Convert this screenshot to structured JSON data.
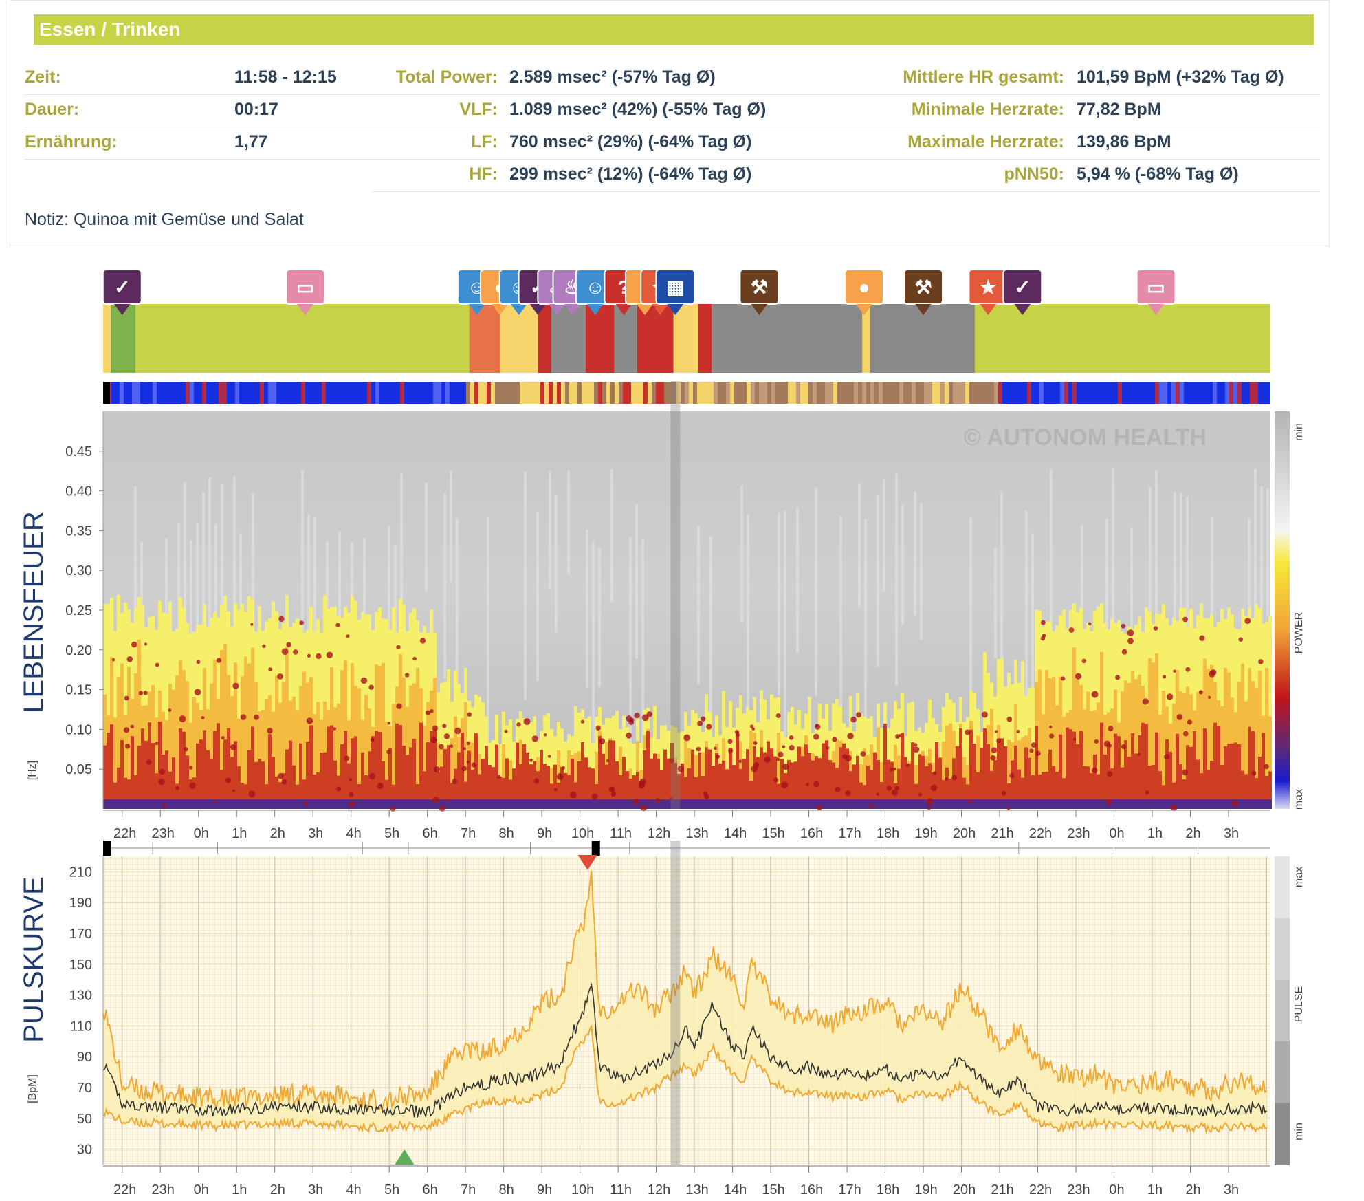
{
  "card": {
    "title": "Essen / Trinken",
    "left_rows": [
      {
        "label": "Zeit:",
        "value": "11:58 - 12:15"
      },
      {
        "label": "Dauer:",
        "value": "00:17"
      },
      {
        "label": "Ernährung:",
        "value": "1,77"
      }
    ],
    "mid_rows": [
      {
        "label": "Total Power:",
        "value": "2.589 msec² (-57% Tag Ø)"
      },
      {
        "label": "VLF:",
        "value": "1.089 msec² (42%) (-55% Tag Ø)"
      },
      {
        "label": "LF:",
        "value": "760 msec² (29%) (-64% Tag Ø)"
      },
      {
        "label": "HF:",
        "value": "299 msec² (12%) (-64% Tag Ø)"
      }
    ],
    "right_rows": [
      {
        "label": "Mittlere HR gesamt:",
        "value": "101,59 BpM (+32% Tag Ø)"
      },
      {
        "label": "Minimale Herzrate:",
        "value": "77,82 BpM"
      },
      {
        "label": "Maximale Herzrate:",
        "value": "139,86 BpM"
      },
      {
        "label": "pNN50:",
        "value": "5,94 % (-68% Tag Ø)"
      }
    ],
    "note": "Notiz: Quinoa mit Gemüse und Salat"
  },
  "colors": {
    "header_bg": "#c6d347",
    "label": "#a9a63a",
    "value": "#2d4257",
    "sleep": "#c6d347",
    "sleep_marker": "#5c2a5e",
    "bed_marker": "#e58aab",
    "food": "#f5a24b",
    "stress": "#c9302c",
    "mental": "#3d8fd1",
    "work": "#8a8a8a",
    "sport": "#6b3e1f",
    "pulse_line": "#333333",
    "pulse_band": "#f0a830",
    "spectro_hot": "#c0141a",
    "spectro_warm": "#f6d72b"
  },
  "watermark": "© AUTONOM HEALTH",
  "chart_data": [
    {
      "type": "heatmap",
      "title": "LEBENSFEUER",
      "ylabel": "[Hz]",
      "ylim": [
        0,
        0.5
      ],
      "y_ticks": [
        "0.45",
        "0.40",
        "0.35",
        "0.30",
        "0.25",
        "0.20",
        "0.15",
        "0.10",
        "0.05"
      ],
      "x_ticks": [
        "22h",
        "23h",
        "0h",
        "1h",
        "2h",
        "3h",
        "4h",
        "5h",
        "6h",
        "7h",
        "8h",
        "9h",
        "10h",
        "11h",
        "12h",
        "13h",
        "14h",
        "15h",
        "16h",
        "17h",
        "18h",
        "19h",
        "20h",
        "21h",
        "22h",
        "23h",
        "0h",
        "1h",
        "2h",
        "3h"
      ],
      "colorbar_labels": [
        "min",
        "POWER",
        "max"
      ],
      "activity_blocks": [
        {
          "start": 21.0,
          "end": 21.2,
          "type": "food"
        },
        {
          "start": 21.2,
          "end": 21.85,
          "type": "sport_green"
        },
        {
          "start": 21.85,
          "end": 30.6,
          "type": "sleep"
        },
        {
          "start": 30.6,
          "end": 31.4,
          "type": "stress_orange"
        },
        {
          "start": 31.4,
          "end": 32.4,
          "type": "food"
        },
        {
          "start": 32.4,
          "end": 32.75,
          "type": "stress"
        },
        {
          "start": 32.75,
          "end": 33.65,
          "type": "work"
        },
        {
          "start": 33.65,
          "end": 34.4,
          "type": "stress"
        },
        {
          "start": 34.4,
          "end": 35.0,
          "type": "work"
        },
        {
          "start": 35.0,
          "end": 35.95,
          "type": "stress"
        },
        {
          "start": 35.95,
          "end": 36.6,
          "type": "food"
        },
        {
          "start": 36.6,
          "end": 36.95,
          "type": "stress"
        },
        {
          "start": 36.95,
          "end": 40.9,
          "type": "work"
        },
        {
          "start": 40.9,
          "end": 41.1,
          "type": "food"
        },
        {
          "start": 41.1,
          "end": 43.85,
          "type": "work"
        },
        {
          "start": 43.85,
          "end": 51.6,
          "type": "sleep"
        }
      ],
      "markers": [
        {
          "time": 21.5,
          "icon": "sleep-moon-icon"
        },
        {
          "time": 26.3,
          "icon": "bed-icon"
        },
        {
          "time": 30.8,
          "icon": "mental-icon"
        },
        {
          "time": 31.4,
          "icon": "food-icon"
        },
        {
          "time": 31.9,
          "icon": "mental-icon"
        },
        {
          "time": 32.4,
          "icon": "sleep-moon-icon"
        },
        {
          "time": 32.9,
          "icon": "relax-icon"
        },
        {
          "time": 33.3,
          "icon": "relax-icon"
        },
        {
          "time": 33.9,
          "icon": "mental-icon"
        },
        {
          "time": 34.65,
          "icon": "question-icon"
        },
        {
          "time": 35.2,
          "icon": "food-icon"
        },
        {
          "time": 35.6,
          "icon": "sport-icon"
        },
        {
          "time": 36.0,
          "icon": "keyboard-icon"
        },
        {
          "time": 38.2,
          "icon": "work-icon"
        },
        {
          "time": 40.95,
          "icon": "food-icon"
        },
        {
          "time": 42.5,
          "icon": "work-icon"
        },
        {
          "time": 44.2,
          "icon": "sport-icon"
        },
        {
          "time": 45.1,
          "icon": "sleep-moon-icon"
        },
        {
          "time": 48.6,
          "icon": "bed-icon"
        }
      ],
      "highlight_time": 36.0
    },
    {
      "type": "line",
      "title": "PULSKURVE",
      "ylabel": "[BpM]",
      "ylim": [
        20,
        220
      ],
      "y_ticks": [
        210,
        190,
        170,
        150,
        130,
        110,
        90,
        70,
        50,
        30
      ],
      "x_ticks": [
        "22h",
        "23h",
        "0h",
        "1h",
        "2h",
        "3h",
        "4h",
        "5h",
        "6h",
        "7h",
        "8h",
        "9h",
        "10h",
        "11h",
        "12h",
        "13h",
        "14h",
        "15h",
        "16h",
        "17h",
        "18h",
        "19h",
        "20h",
        "21h",
        "22h",
        "23h",
        "0h",
        "1h",
        "2h",
        "3h"
      ],
      "colorbar_labels": [
        "max",
        "PULSE",
        "min"
      ],
      "x": [
        21.0,
        21.5,
        22.0,
        23.0,
        24.0,
        25.0,
        26.0,
        27.0,
        28.0,
        28.9,
        29.5,
        30.0,
        30.5,
        31.0,
        31.5,
        32.0,
        32.5,
        33.0,
        33.3,
        33.6,
        33.8,
        34.0,
        34.3,
        34.6,
        35.0,
        35.5,
        36.0,
        36.3,
        36.5,
        37.0,
        37.5,
        37.8,
        38.0,
        38.5,
        39.0,
        39.5,
        40.0,
        40.5,
        41.0,
        41.5,
        42.0,
        42.5,
        43.0,
        43.5,
        44.0,
        44.5,
        45.0,
        45.5,
        46.0,
        46.5,
        47.0,
        47.5,
        48.0,
        49.0,
        50.0,
        51.0,
        51.5
      ],
      "series": [
        {
          "name": "max",
          "values": [
            125,
            72,
            68,
            65,
            62,
            64,
            66,
            65,
            62,
            64,
            66,
            85,
            95,
            92,
            100,
            108,
            125,
            130,
            160,
            175,
            210,
            120,
            122,
            128,
            135,
            120,
            135,
            148,
            130,
            155,
            140,
            125,
            148,
            130,
            115,
            120,
            110,
            118,
            120,
            125,
            110,
            120,
            112,
            135,
            118,
            95,
            110,
            85,
            80,
            75,
            80,
            70,
            72,
            75,
            68,
            75,
            68
          ]
        },
        {
          "name": "mean",
          "values": [
            85,
            60,
            58,
            56,
            55,
            57,
            58,
            57,
            55,
            55,
            54,
            62,
            70,
            72,
            76,
            75,
            80,
            85,
            105,
            118,
            140,
            85,
            78,
            76,
            80,
            85,
            95,
            108,
            95,
            125,
            95,
            92,
            110,
            90,
            82,
            83,
            78,
            80,
            78,
            82,
            75,
            80,
            78,
            90,
            75,
            65,
            75,
            58,
            55,
            55,
            58,
            55,
            57,
            56,
            55,
            57,
            55
          ]
        },
        {
          "name": "min",
          "values": [
            55,
            48,
            47,
            46,
            45,
            46,
            47,
            46,
            44,
            45,
            44,
            50,
            56,
            60,
            62,
            62,
            65,
            70,
            90,
            100,
            110,
            62,
            60,
            60,
            65,
            70,
            80,
            85,
            78,
            95,
            78,
            75,
            88,
            75,
            66,
            68,
            64,
            65,
            64,
            68,
            62,
            66,
            64,
            72,
            60,
            52,
            60,
            46,
            44,
            45,
            47,
            45,
            46,
            45,
            44,
            45,
            44
          ]
        }
      ],
      "markers": [
        {
          "time": 33.7,
          "type": "max-triangle"
        },
        {
          "time": 28.9,
          "type": "min-triangle"
        }
      ],
      "highlight_time": 36.0
    }
  ]
}
